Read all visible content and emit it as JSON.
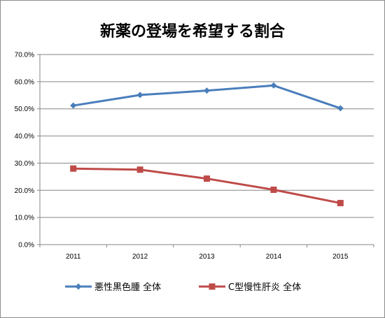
{
  "chart_data": {
    "type": "line",
    "title": "新薬の登場を希望する割合",
    "categories": [
      "2011",
      "2012",
      "2013",
      "2014",
      "2015"
    ],
    "yticks": [
      "0.0%",
      "10.0%",
      "20.0%",
      "30.0%",
      "40.0%",
      "50.0%",
      "60.0%",
      "70.0%"
    ],
    "ylim": [
      0,
      70
    ],
    "grid": true,
    "legend_position": "bottom",
    "series": [
      {
        "name": "悪性黒色腫 全体",
        "values": [
          51.2,
          55.1,
          56.7,
          58.6,
          50.2
        ],
        "color": "#4a7ebb",
        "marker": "diamond"
      },
      {
        "name": "C型慢性肝炎 全体",
        "values": [
          28.0,
          27.6,
          24.3,
          20.2,
          15.3
        ],
        "color": "#be4b48",
        "marker": "square"
      }
    ]
  }
}
